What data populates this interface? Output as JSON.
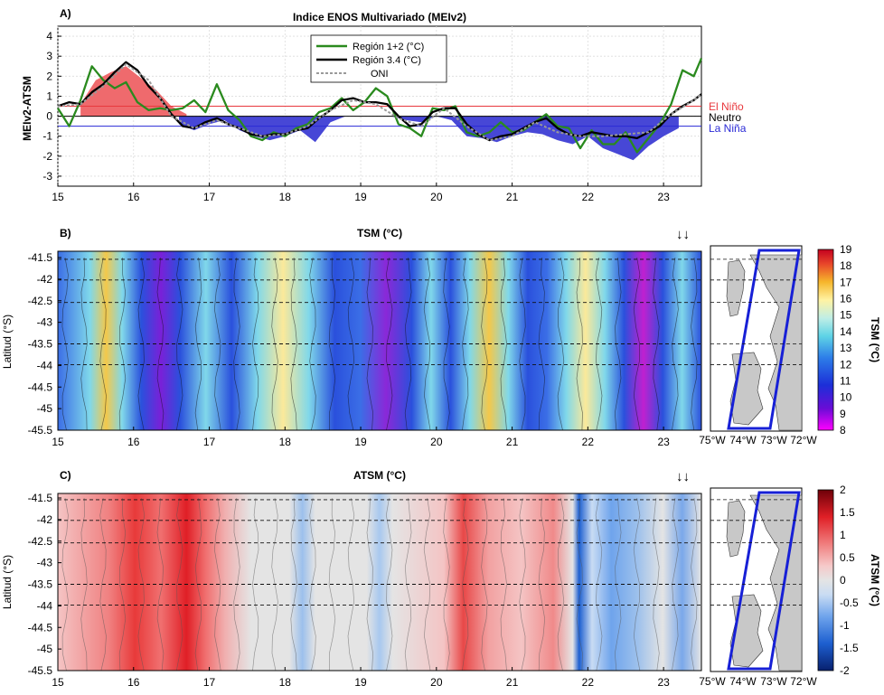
{
  "chart_data": [
    {
      "type": "line+area",
      "panel_label": "A)",
      "title": "Indice ENOS Multivariado (MEIv2)",
      "ylabel": "MEIv2-ATSM",
      "ylim": [
        -3.5,
        4.5
      ],
      "yticks": [
        "4",
        "3",
        "2",
        "1",
        "0",
        "-1",
        "-2",
        "-3"
      ],
      "xlim": [
        15,
        23.5
      ],
      "xticks": [
        "15",
        "16",
        "17",
        "18",
        "19",
        "20",
        "21",
        "22",
        "23"
      ],
      "thresholds": [
        {
          "label": "El Niño",
          "value": 0.5,
          "color": "#e8383d"
        },
        {
          "label": "Neutro",
          "value": 0.0,
          "color": "#000000"
        },
        {
          "label": "La Niña",
          "value": -0.5,
          "color": "#2a2ad6"
        }
      ],
      "legend_position": "top-center",
      "series": [
        {
          "name": "Región 1+2 (°C)",
          "color": "#2a8a1e",
          "x": [
            15.0,
            15.15,
            15.3,
            15.45,
            15.6,
            15.75,
            15.9,
            16.05,
            16.2,
            16.35,
            16.5,
            16.65,
            16.8,
            16.95,
            17.1,
            17.25,
            17.4,
            17.55,
            17.7,
            17.85,
            18.0,
            18.15,
            18.3,
            18.45,
            18.6,
            18.75,
            18.9,
            19.05,
            19.2,
            19.35,
            19.5,
            19.65,
            19.8,
            19.95,
            20.1,
            20.25,
            20.4,
            20.55,
            20.7,
            20.85,
            21.0,
            21.15,
            21.3,
            21.45,
            21.6,
            21.75,
            21.9,
            22.05,
            22.2,
            22.35,
            22.5,
            22.65,
            22.8,
            22.95,
            23.1,
            23.25,
            23.4,
            23.5
          ],
          "values": [
            0.4,
            -0.5,
            0.8,
            2.5,
            1.8,
            1.4,
            1.7,
            0.7,
            0.3,
            0.4,
            0.3,
            0.4,
            0.8,
            0.2,
            1.6,
            0.3,
            -0.2,
            -1.0,
            -1.2,
            -0.8,
            -1.0,
            -0.6,
            -0.4,
            0.2,
            0.4,
            0.9,
            0.3,
            0.7,
            1.4,
            1.0,
            -0.4,
            -0.6,
            -1.0,
            0.4,
            0.3,
            0.5,
            -0.8,
            -1.0,
            -0.8,
            -0.3,
            -0.8,
            -0.7,
            -0.3,
            0.1,
            -0.5,
            -0.6,
            -1.6,
            -0.7,
            -1.4,
            -1.4,
            -0.8,
            -1.8,
            -1.1,
            -0.4,
            0.6,
            2.3,
            2.0,
            2.9
          ]
        },
        {
          "name": "Región 3.4 (°C)",
          "color": "#000000",
          "x": [
            15.0,
            15.15,
            15.3,
            15.45,
            15.6,
            15.75,
            15.9,
            16.05,
            16.2,
            16.35,
            16.5,
            16.65,
            16.8,
            16.95,
            17.1,
            17.25,
            17.4,
            17.55,
            17.7,
            17.85,
            18.0,
            18.15,
            18.3,
            18.45,
            18.6,
            18.75,
            18.9,
            19.05,
            19.2,
            19.35,
            19.5,
            19.65,
            19.8,
            19.95,
            20.1,
            20.25,
            20.4,
            20.55,
            20.7,
            20.85,
            21.0,
            21.15,
            21.3,
            21.45,
            21.6,
            21.75,
            21.9,
            22.05,
            22.2,
            22.35,
            22.5,
            22.65,
            22.8,
            22.95,
            23.1,
            23.25,
            23.4,
            23.5
          ],
          "values": [
            0.5,
            0.7,
            0.6,
            1.2,
            1.6,
            2.2,
            2.7,
            2.3,
            1.5,
            0.9,
            0.1,
            -0.5,
            -0.6,
            -0.3,
            -0.1,
            -0.4,
            -0.6,
            -0.9,
            -1.0,
            -0.9,
            -0.9,
            -0.7,
            -0.6,
            -0.1,
            0.3,
            0.8,
            0.9,
            0.7,
            0.7,
            0.6,
            0.0,
            -0.5,
            -0.4,
            0.2,
            0.4,
            0.4,
            -0.4,
            -0.9,
            -1.2,
            -1.0,
            -0.9,
            -0.6,
            -0.3,
            -0.1,
            -0.6,
            -0.9,
            -1.0,
            -0.8,
            -0.9,
            -1.0,
            -1.0,
            -1.1,
            -0.8,
            -0.5,
            0.1,
            0.5,
            0.8,
            1.1
          ]
        },
        {
          "name": "ONI",
          "color": "#9a9a9a",
          "dash": true,
          "x": [
            15.0,
            15.3,
            15.6,
            15.9,
            16.2,
            16.5,
            16.8,
            17.1,
            17.4,
            17.7,
            18.0,
            18.3,
            18.6,
            18.9,
            19.2,
            19.5,
            19.8,
            20.1,
            20.4,
            20.7,
            21.0,
            21.3,
            21.6,
            21.9,
            22.2,
            22.5,
            22.8,
            23.1,
            23.4,
            23.5
          ],
          "values": [
            0.5,
            0.6,
            1.5,
            2.6,
            1.8,
            0.0,
            -0.6,
            -0.2,
            -0.6,
            -1.0,
            -0.9,
            -0.5,
            0.3,
            0.8,
            0.6,
            -0.1,
            -0.5,
            0.4,
            -0.5,
            -1.2,
            -1.0,
            -0.3,
            -0.8,
            -1.0,
            -1.0,
            -0.9,
            -0.8,
            0.1,
            0.8,
            1.1
          ]
        }
      ],
      "areas": [
        {
          "name": "ATSM positive",
          "color": "#ef6a6d",
          "x": [
            15.3,
            15.5,
            15.7,
            15.9,
            16.1,
            16.3,
            16.5,
            16.7
          ],
          "values": [
            0.6,
            1.8,
            2.2,
            2.5,
            1.9,
            1.3,
            0.5,
            0.1
          ]
        },
        {
          "name": "ATSM negative",
          "color": "#4747d6",
          "x": [
            16.6,
            16.8,
            17.0,
            17.2,
            17.4,
            17.6,
            17.8,
            18.0,
            18.2,
            18.4,
            18.6,
            18.8,
            19.0,
            19.2,
            19.4,
            19.6,
            19.8,
            20.0,
            20.2,
            20.4,
            20.6,
            20.8,
            21.0,
            21.2,
            21.4,
            21.6,
            21.8,
            22.0,
            22.2,
            22.4,
            22.6,
            22.8,
            23.0,
            23.2
          ],
          "values": [
            -0.4,
            -0.7,
            -0.4,
            -0.2,
            -0.7,
            -1.0,
            -1.2,
            -1.0,
            -0.7,
            -1.3,
            -0.3,
            0.0,
            0.0,
            0.0,
            0.0,
            -0.2,
            -0.3,
            0.0,
            -0.2,
            -1.0,
            -1.1,
            -1.3,
            -1.0,
            -0.8,
            -0.9,
            -1.2,
            -1.4,
            -1.0,
            -1.6,
            -1.9,
            -2.2,
            -1.5,
            -1.0,
            -0.6
          ]
        }
      ]
    },
    {
      "type": "heatmap",
      "panel_label": "B)",
      "title": "TSM (°C)",
      "ylabel": "Latitud (°S)",
      "yticks": [
        "-41.5",
        "-42",
        "-42.5",
        "-43",
        "-43.5",
        "-44",
        "-44.5",
        "-45",
        "-45.5"
      ],
      "xticks": [
        "15",
        "16",
        "17",
        "18",
        "19",
        "20",
        "21",
        "22",
        "23"
      ],
      "colorbar_label": "TSM (°C)",
      "colorbar_ticks": [
        "19",
        "18",
        "17",
        "16",
        "15",
        "14",
        "13",
        "12",
        "11",
        "10",
        "9",
        "8"
      ],
      "colorbar_range": [
        8,
        19
      ],
      "arrows": "↓↓",
      "map_xticks": [
        "75°W",
        "74°W",
        "73°W",
        "72°W"
      ]
    },
    {
      "type": "heatmap",
      "panel_label": "C)",
      "title": "ATSM (°C)",
      "ylabel": "Latitud (°S)",
      "yticks": [
        "-41.5",
        "-42",
        "-42.5",
        "-43",
        "-43.5",
        "-44",
        "-44.5",
        "-45",
        "-45.5"
      ],
      "xticks": [
        "15",
        "16",
        "17",
        "18",
        "19",
        "20",
        "21",
        "22",
        "23"
      ],
      "colorbar_label": "ATSM (°C)",
      "colorbar_ticks": [
        "2",
        "1.5",
        "1",
        "0.5",
        "0",
        "-0.5",
        "-1",
        "-1.5",
        "-2"
      ],
      "colorbar_range": [
        -2,
        2
      ],
      "arrows": "↓↓",
      "map_xticks": [
        "75°W",
        "74°W",
        "73°W",
        "72°W"
      ]
    }
  ]
}
